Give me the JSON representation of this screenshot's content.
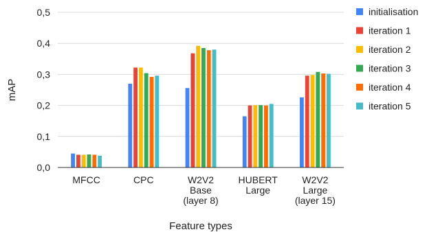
{
  "chart_data": {
    "type": "bar",
    "title": "",
    "xlabel": "Feature types",
    "ylabel": "mAP",
    "ylim": [
      0,
      0.5
    ],
    "yticks": [
      "0,0",
      "0,1",
      "0,2",
      "0,3",
      "0,4",
      "0,5"
    ],
    "ytick_values": [
      0,
      0.1,
      0.2,
      0.3,
      0.4,
      0.5
    ],
    "grid": true,
    "legend_position": "right",
    "categories": [
      [
        "MFCC"
      ],
      [
        "CPC"
      ],
      [
        "W2V2",
        "Base",
        "(layer 8)"
      ],
      [
        "HUBERT",
        "Large"
      ],
      [
        "W2V2",
        "Large",
        "(layer 15)"
      ]
    ],
    "series": [
      {
        "name": "initialisation",
        "color": "#4285f4",
        "values": [
          0.045,
          0.27,
          0.256,
          0.165,
          0.226
        ]
      },
      {
        "name": "iteration 1",
        "color": "#ea4335",
        "values": [
          0.041,
          0.322,
          0.368,
          0.2,
          0.296
        ]
      },
      {
        "name": "iteration 2",
        "color": "#fbbc04",
        "values": [
          0.041,
          0.322,
          0.392,
          0.201,
          0.298
        ]
      },
      {
        "name": "iteration 3",
        "color": "#34a853",
        "values": [
          0.042,
          0.304,
          0.385,
          0.201,
          0.308
        ]
      },
      {
        "name": "iteration 4",
        "color": "#ff6d01",
        "values": [
          0.041,
          0.292,
          0.378,
          0.2,
          0.303
        ]
      },
      {
        "name": "iteration 5",
        "color": "#46bdc6",
        "values": [
          0.038,
          0.296,
          0.38,
          0.205,
          0.302
        ]
      }
    ]
  }
}
